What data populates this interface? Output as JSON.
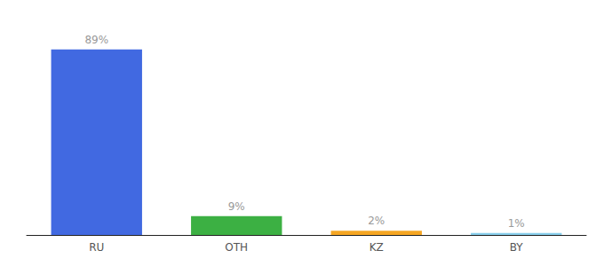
{
  "chart_data": {
    "type": "bar",
    "categories": [
      "RU",
      "OTH",
      "KZ",
      "BY"
    ],
    "values": [
      89,
      9,
      2,
      1
    ],
    "value_labels": [
      "89%",
      "9%",
      "2%",
      "1%"
    ],
    "colors": [
      "#4169e1",
      "#3cb043",
      "#f5a623",
      "#87ceeb"
    ],
    "ylim": [
      0,
      100
    ],
    "grid": false,
    "data_labels": true,
    "tick_labels": "x"
  }
}
